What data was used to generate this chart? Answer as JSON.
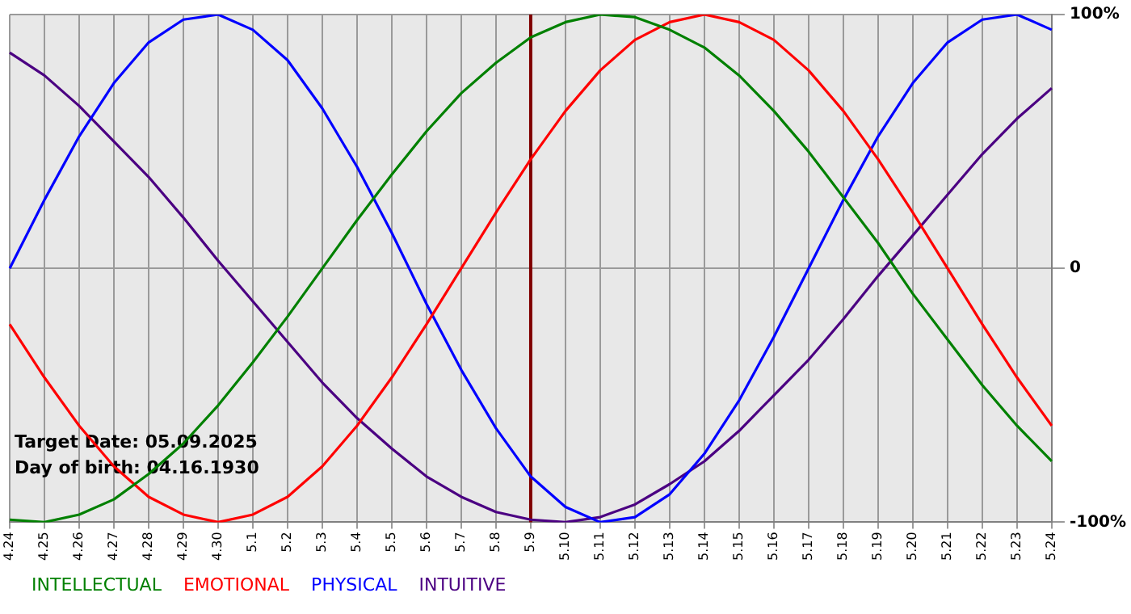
{
  "chart_data": {
    "type": "line",
    "categories": [
      "4.24",
      "4.25",
      "4.26",
      "4.27",
      "4.28",
      "4.29",
      "4.30",
      "5.1",
      "5.2",
      "5.3",
      "5.4",
      "5.5",
      "5.6",
      "5.7",
      "5.8",
      "5.9",
      "5.10",
      "5.11",
      "5.12",
      "5.13",
      "5.14",
      "5.15",
      "5.16",
      "5.17",
      "5.18",
      "5.19",
      "5.20",
      "5.21",
      "5.22",
      "5.23",
      "5.24"
    ],
    "series": [
      {
        "name": "INTELLECTUAL",
        "color": "#008000",
        "values": [
          -99,
          -100,
          -97,
          -91,
          -81,
          -69,
          -54,
          -37,
          -19,
          0,
          19,
          37,
          54,
          69,
          81,
          91,
          97,
          100,
          99,
          94,
          87,
          76,
          62,
          46,
          28,
          10,
          -10,
          -28,
          -46,
          -62,
          -76
        ]
      },
      {
        "name": "EMOTIONAL",
        "color": "#ff0000",
        "values": [
          -22,
          -43,
          -62,
          -78,
          -90,
          -97,
          -100,
          -97,
          -90,
          -78,
          -62,
          -43,
          -22,
          0,
          22,
          43,
          62,
          78,
          90,
          97,
          100,
          97,
          90,
          78,
          62,
          43,
          22,
          0,
          -22,
          -43,
          -62
        ]
      },
      {
        "name": "PHYSICAL",
        "color": "#0000ff",
        "values": [
          0,
          27,
          52,
          73,
          89,
          98,
          100,
          94,
          82,
          63,
          40,
          14,
          -14,
          -40,
          -63,
          -82,
          -94,
          -100,
          -98,
          -89,
          -73,
          -52,
          -27,
          0,
          27,
          52,
          73,
          89,
          98,
          100,
          94
        ]
      },
      {
        "name": "INTUITIVE",
        "color": "#4b0082",
        "values": [
          85,
          76,
          64,
          50,
          36,
          20,
          3,
          -13,
          -29,
          -45,
          -59,
          -71,
          -82,
          -90,
          -96,
          -99,
          -100,
          -98,
          -93,
          -85,
          -76,
          -64,
          -50,
          -36,
          -20,
          -3,
          13,
          29,
          45,
          59,
          71
        ]
      }
    ],
    "ylim": [
      -100,
      100
    ],
    "yticks": [
      {
        "value": 100,
        "label": "100%"
      },
      0,
      {
        "value": -100,
        "label": "-100%"
      }
    ],
    "grid": true,
    "legend": "bottom",
    "ref_lines": [
      {
        "axis": "x",
        "value": "5.9",
        "color": "#800000"
      }
    ],
    "annotations": [
      "Target Date: 05.09.2025",
      "Day of birth: 04.16.1930"
    ]
  }
}
